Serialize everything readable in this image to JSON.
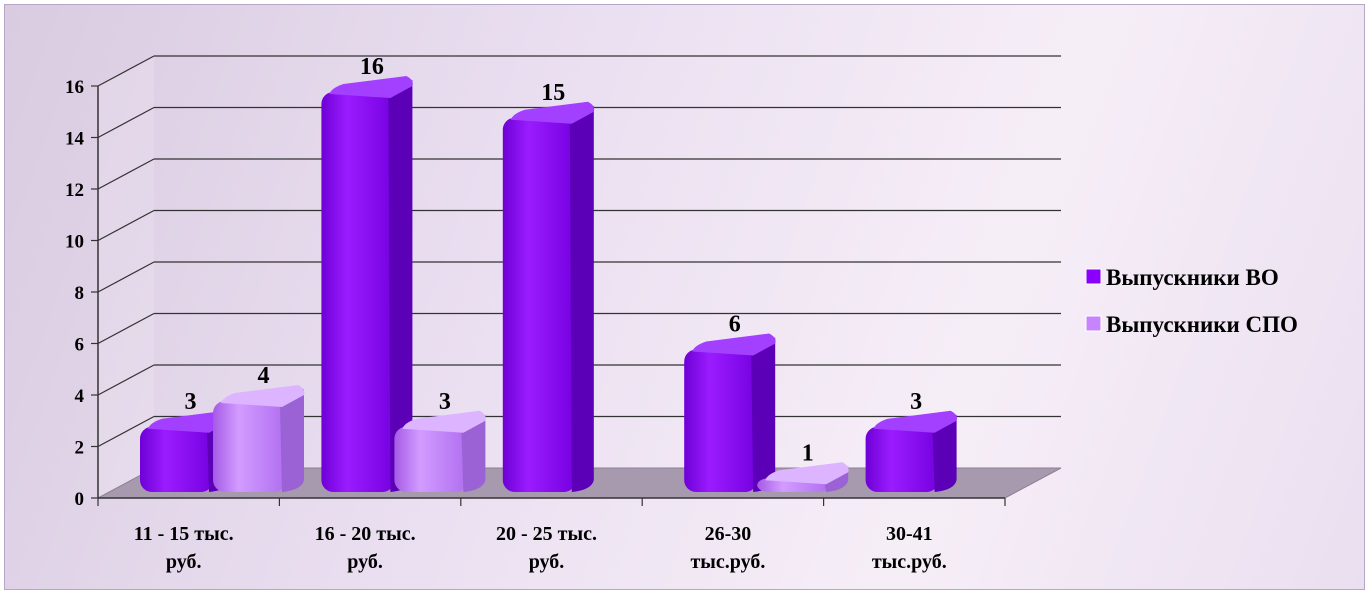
{
  "chart_data": {
    "type": "bar",
    "title": "",
    "xlabel": "",
    "ylabel": "",
    "ylim": [
      0,
      16
    ],
    "y_ticks": [
      "0",
      "2",
      "4",
      "6",
      "8",
      "10",
      "12",
      "14",
      "16"
    ],
    "grid": true,
    "legend_position": "right",
    "categories": [
      [
        "11 - 15 тыс.",
        "руб."
      ],
      [
        "16 - 20 тыс.",
        "руб."
      ],
      [
        "20  - 25 тыс.",
        "руб."
      ],
      [
        "26-30",
        "тыс.руб."
      ],
      [
        "30-41",
        "тыс.руб."
      ]
    ],
    "series": [
      {
        "name": "Выпускники ВО",
        "color": "#8a00ff",
        "values": [
          3,
          16,
          15,
          6,
          3
        ]
      },
      {
        "name": "Выпускники СПО",
        "color": "#c685ff",
        "values": [
          4,
          3,
          null,
          1,
          null
        ]
      }
    ]
  }
}
